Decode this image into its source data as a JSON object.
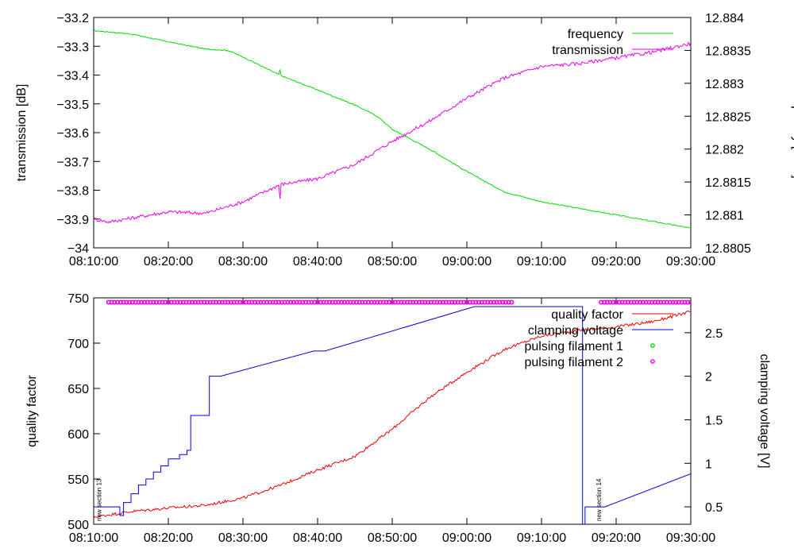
{
  "chart_data": [
    {
      "type": "line",
      "title": "",
      "xlabel": "",
      "ylabel": "transmission [dB]",
      "y2label": "frequency [GHz]",
      "grid": false,
      "legend_position": "top-right",
      "x_ticks": [
        "08:10:00",
        "08:20:00",
        "08:30:00",
        "08:40:00",
        "08:50:00",
        "09:00:00",
        "09:10:00",
        "09:20:00",
        "09:30:00"
      ],
      "xlim": [
        "08:10:00",
        "09:30:00"
      ],
      "ylim": [
        -34,
        -33.2
      ],
      "y_ticks": [
        "-33.2",
        "-33.3",
        "-33.4",
        "-33.5",
        "-33.6",
        "-33.7",
        "-33.8",
        "-33.9",
        "-34"
      ],
      "y2lim": [
        12.8805,
        12.884
      ],
      "y2_ticks": [
        "12.884",
        "12.8835",
        "12.883",
        "12.8825",
        "12.882",
        "12.8815",
        "12.881",
        "12.8805"
      ],
      "series": [
        {
          "name": "frequency",
          "axis": "y2",
          "color": "#00dd00",
          "noise": 8e-06,
          "x": [
            "08:10:00",
            "08:15:00",
            "08:20:00",
            "08:25:00",
            "08:28:00",
            "08:30:00",
            "08:35:00",
            "08:40:00",
            "08:45:00",
            "08:48:00",
            "08:50:00",
            "08:55:00",
            "09:00:00",
            "09:05:00",
            "09:10:00",
            "09:15:00",
            "09:20:00",
            "09:25:00",
            "09:30:00"
          ],
          "y": [
            12.8838,
            12.88375,
            12.88363,
            12.88352,
            12.8835,
            12.8834,
            12.88312,
            12.8829,
            12.88267,
            12.8825,
            12.8823,
            12.882,
            12.88166,
            12.88135,
            12.8812,
            12.8811,
            12.881,
            12.8809,
            12.8808
          ],
          "spike": {
            "x": "08:35:00",
            "value": 12.88321
          }
        },
        {
          "name": "transmission",
          "axis": "y1",
          "color": "#ee00ee",
          "noise": 0.006,
          "x": [
            "08:10:00",
            "08:12:00",
            "08:20:00",
            "08:25:00",
            "08:30:00",
            "08:35:00",
            "08:40:00",
            "08:45:00",
            "08:50:00",
            "08:55:00",
            "09:00:00",
            "09:05:00",
            "09:10:00",
            "09:15:00",
            "09:20:00",
            "09:25:00",
            "09:30:00"
          ],
          "y": [
            -33.9,
            -33.91,
            -33.875,
            -33.88,
            -33.84,
            -33.78,
            -33.76,
            -33.71,
            -33.63,
            -33.56,
            -33.48,
            -33.41,
            -33.37,
            -33.36,
            -33.34,
            -33.32,
            -33.29
          ],
          "spike": {
            "x": "08:35:00",
            "value": -33.83
          }
        }
      ]
    },
    {
      "type": "line",
      "title": "",
      "xlabel": "",
      "ylabel": "quality factor",
      "y2label": "clamping voltage [V]",
      "grid": false,
      "legend_position": "top-right",
      "x_ticks": [
        "08:10:00",
        "08:20:00",
        "08:30:00",
        "08:40:00",
        "08:50:00",
        "09:00:00",
        "09:10:00",
        "09:20:00",
        "09:30:00"
      ],
      "xlim": [
        "08:10:00",
        "09:30:00"
      ],
      "ylim": [
        500,
        750
      ],
      "y_ticks": [
        "750",
        "700",
        "650",
        "600",
        "550",
        "500"
      ],
      "y2lim": [
        0.3,
        2.9
      ],
      "y2_ticks": [
        "2.5",
        "2",
        "1.5",
        "1",
        "0.5"
      ],
      "series": [
        {
          "name": "quality factor",
          "axis": "y1",
          "color": "#ee0000",
          "noise": 1.6,
          "x": [
            "08:10:00",
            "08:15:00",
            "08:20:00",
            "08:25:00",
            "08:30:00",
            "08:35:00",
            "08:40:00",
            "08:45:00",
            "08:50:00",
            "08:55:00",
            "09:00:00",
            "09:05:00",
            "09:10:00",
            "09:15:00",
            "09:20:00",
            "09:25:00",
            "09:30:00"
          ],
          "y": [
            508,
            514,
            518,
            521,
            529,
            543,
            560,
            575,
            605,
            640,
            668,
            693,
            708,
            714,
            718,
            724,
            735
          ]
        },
        {
          "name": "clamping voltage",
          "axis": "y2",
          "color": "#0000dd",
          "x": [
            "08:10:00",
            "08:13:30",
            "08:13:30",
            "08:14:00",
            "08:14:00",
            "08:15:00",
            "08:15:00",
            "08:16:00",
            "08:16:00",
            "08:17:00",
            "08:17:00",
            "08:18:00",
            "08:18:00",
            "08:19:00",
            "08:19:00",
            "08:20:00",
            "08:20:00",
            "08:21:30",
            "08:21:30",
            "08:22:30",
            "08:22:30",
            "08:23:00",
            "08:23:00",
            "08:25:30",
            "08:25:30",
            "08:27:00",
            "08:39:30",
            "08:41:00",
            "09:01:00",
            "09:15:30",
            "09:15:30",
            "09:15:50",
            "09:15:50",
            "09:18:30",
            "09:30:00"
          ],
          "y": [
            0.5,
            0.5,
            0.4,
            0.4,
            0.55,
            0.55,
            0.65,
            0.65,
            0.75,
            0.75,
            0.82,
            0.82,
            0.9,
            0.9,
            0.97,
            0.97,
            1.05,
            1.05,
            1.1,
            1.1,
            1.15,
            1.15,
            1.55,
            1.55,
            2.0,
            2.0,
            2.29,
            2.29,
            2.8,
            2.8,
            0.3,
            0.3,
            0.5,
            0.5,
            0.88
          ]
        },
        {
          "name": "pulsing filament 1",
          "axis": "y2",
          "color": "#00dd00",
          "points": []
        },
        {
          "name": "pulsing filament 2",
          "axis": "y2",
          "color": "#ee00ee",
          "pulse_ranges": [
            [
              "08:12:00",
              "09:06:00"
            ],
            [
              "09:18:00",
              "09:30:00"
            ]
          ],
          "level": 2.85
        }
      ],
      "annotations": [
        {
          "text": "new section 13",
          "x": "08:11:00"
        },
        {
          "text": "new section 14",
          "x": "09:18:00"
        }
      ]
    }
  ]
}
